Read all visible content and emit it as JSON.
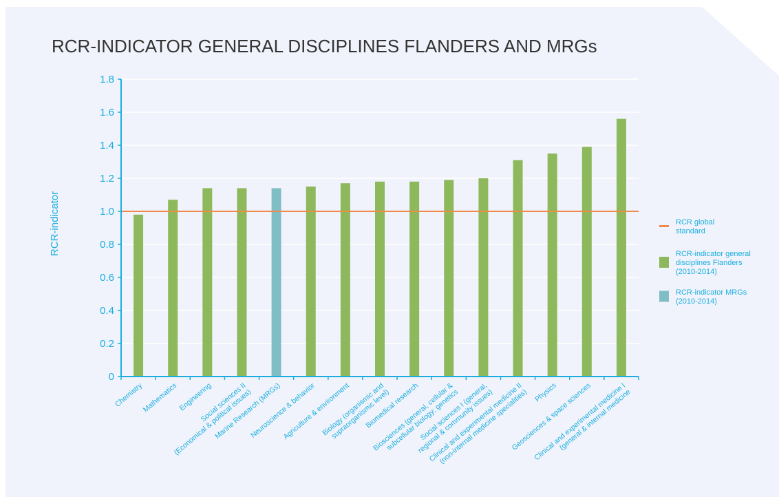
{
  "chart_data": {
    "type": "bar",
    "title": "RCR-INDICATOR GENERAL DISCIPLINES FLANDERS AND MRGs",
    "ylabel": "RCR-indicator",
    "categories": [
      [
        "Chemistry"
      ],
      [
        "Mathematics"
      ],
      [
        "Engineering"
      ],
      [
        "Social sciences II",
        "(Economical & political issues)"
      ],
      [
        "Marine Research (MRGs)"
      ],
      [
        "Neuroscience & behavior"
      ],
      [
        "Agriculture & environment"
      ],
      [
        "Biology (organismic and",
        "supraorganismic level)"
      ],
      [
        "Biomedical research"
      ],
      [
        "Biosciences (general, cellular &",
        "subcellular biology; genetics"
      ],
      [
        "Social sciences I (general,",
        "regional & community issues)"
      ],
      [
        "Clinical and experimental medicine II",
        "(non-internal medicine specialities)"
      ],
      [
        "Physics"
      ],
      [
        "Geosciences & space sciences"
      ],
      [
        "Clinical and experimental medicine I",
        "(general & internal medicine"
      ]
    ],
    "series": [
      {
        "name": [
          "RCR-indicator general",
          "disciplines Flanders",
          "(2010-2014)"
        ],
        "color": "#8db85b",
        "values": [
          0.98,
          1.07,
          1.14,
          1.14,
          null,
          1.15,
          1.17,
          1.18,
          1.18,
          1.19,
          1.2,
          1.31,
          1.35,
          1.39,
          1.56
        ]
      },
      {
        "name": [
          "RCR-indicator MRGs",
          "(2010-2014)"
        ],
        "color": "#80bec6",
        "values": [
          null,
          null,
          null,
          null,
          1.14,
          null,
          null,
          null,
          null,
          null,
          null,
          null,
          null,
          null,
          null
        ]
      }
    ],
    "reference_line": {
      "name": [
        "RCR global",
        "standard"
      ],
      "value": 1.0,
      "color": "#f08a4b"
    },
    "ylim": [
      0,
      1.8
    ],
    "yticks": [
      {
        "value": 0,
        "label": "0"
      },
      {
        "value": 0.2,
        "label": "0.2"
      },
      {
        "value": 0.4,
        "label": "0.4"
      },
      {
        "value": 0.6,
        "label": "0.6"
      },
      {
        "value": 0.8,
        "label": "0.8"
      },
      {
        "value": 1.0,
        "label": "1.0"
      },
      {
        "value": 1.2,
        "label": "1.2"
      },
      {
        "value": 1.4,
        "label": "1.4"
      },
      {
        "value": 1.6,
        "label": "1.6"
      },
      {
        "value": 1.8,
        "label": "1.8"
      }
    ],
    "grid": true
  }
}
